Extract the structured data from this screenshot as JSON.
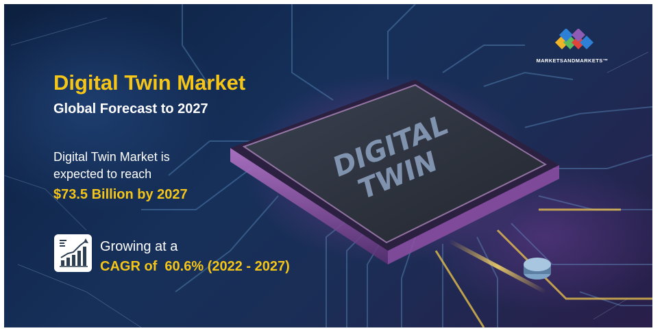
{
  "brand": {
    "logo_text": "MARKETSANDMARKETS™"
  },
  "headline": {
    "title": "Digital Twin Market",
    "subtitle": "Global Forecast to 2027"
  },
  "forecast": {
    "line1": "Digital Twin Market is",
    "line2": "expected to reach",
    "value": "$73.5 Billion by 2027"
  },
  "growth": {
    "label": "Growing at a",
    "cagr": "CAGR of  60.6% (2022 - 2027)",
    "icon": "growth-chart-icon"
  },
  "chip": {
    "line1": "DIGITAL",
    "line2": "TWIN"
  },
  "colors": {
    "accent": "#f5c518",
    "text": "#ffffff",
    "background": "#16305a",
    "logo_blue": "#2e7fd6",
    "logo_green": "#5cb85c",
    "logo_red": "#e0433a",
    "logo_yellow": "#f0b429",
    "logo_purple": "#8e5bb5"
  }
}
